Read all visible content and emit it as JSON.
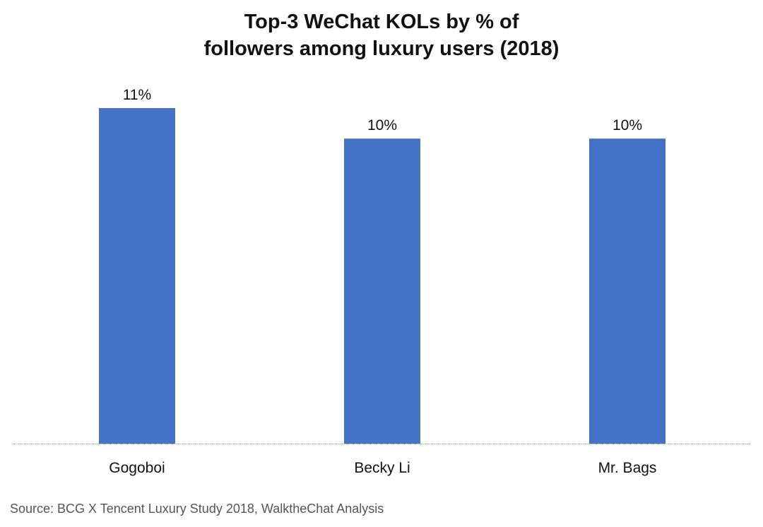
{
  "chart_data": {
    "type": "bar",
    "title_lines": [
      "Top-3 WeChat KOLs by % of",
      "followers among luxury users (2018)"
    ],
    "categories": [
      "Gogoboi",
      "Becky Li",
      "Mr. Bags"
    ],
    "values": [
      11,
      10,
      10
    ],
    "value_labels": [
      "11%",
      "10%",
      "10%"
    ],
    "unit": "%",
    "ylim": [
      0,
      11
    ],
    "grid": false,
    "legend": "none",
    "bar_color": "#4472C4",
    "source": "Source: BCG X Tencent Luxury Study 2018, WalktheChat Analysis"
  }
}
